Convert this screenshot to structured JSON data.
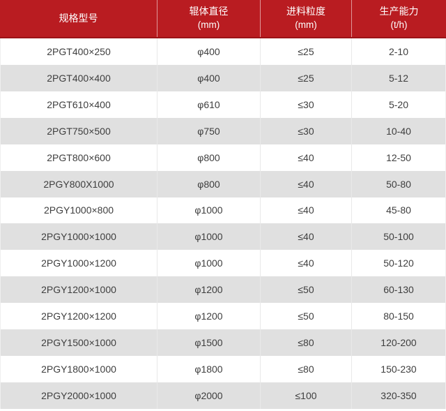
{
  "table": {
    "columns": [
      {
        "label": "规格型号",
        "unit": ""
      },
      {
        "label": "辊体直径",
        "unit": "(mm)"
      },
      {
        "label": "进料粒度",
        "unit": "(mm)"
      },
      {
        "label": "生产能力",
        "unit": "(t/h)"
      }
    ],
    "rows": [
      [
        "2PGT400×250",
        "φ400",
        "≤25",
        "2-10"
      ],
      [
        "2PGT400×400",
        "φ400",
        "≤25",
        "5-12"
      ],
      [
        "2PGT610×400",
        "φ610",
        "≤30",
        "5-20"
      ],
      [
        "2PGT750×500",
        "φ750",
        "≤30",
        "10-40"
      ],
      [
        "2PGT800×600",
        "φ800",
        "≤40",
        "12-50"
      ],
      [
        "2PGY800X1000",
        "φ800",
        "≤40",
        "50-80"
      ],
      [
        "2PGY1000×800",
        "φ1000",
        "≤40",
        "45-80"
      ],
      [
        "2PGY1000×1000",
        "φ1000",
        "≤40",
        "50-100"
      ],
      [
        "2PGY1000×1200",
        "φ1000",
        "≤40",
        "50-120"
      ],
      [
        "2PGY1200×1000",
        "φ1200",
        "≤50",
        "60-130"
      ],
      [
        "2PGY1200×1200",
        "φ1200",
        "≤50",
        "80-150"
      ],
      [
        "2PGY1500×1000",
        "φ1500",
        "≤80",
        "120-200"
      ],
      [
        "2PGY1800×1000",
        "φ1800",
        "≤80",
        "150-230"
      ],
      [
        "2PGY2000×1000",
        "φ2000",
        "≤100",
        "320-350"
      ]
    ],
    "colors": {
      "header_bg": "#b91c21",
      "header_border_bottom": "#9c1217",
      "header_text": "#ffffff",
      "row_alt_bg": "#e0e0e0",
      "row_bg": "#ffffff",
      "cell_text": "#3e3e3e",
      "divider": "#e9e9e9"
    }
  },
  "chart_data": {
    "type": "table",
    "title": "",
    "columns": [
      "规格型号",
      "辊体直径 (mm)",
      "进料粒度 (mm)",
      "生产能力 (t/h)"
    ],
    "rows": [
      [
        "2PGT400×250",
        "φ400",
        "≤25",
        "2-10"
      ],
      [
        "2PGT400×400",
        "φ400",
        "≤25",
        "5-12"
      ],
      [
        "2PGT610×400",
        "φ610",
        "≤30",
        "5-20"
      ],
      [
        "2PGT750×500",
        "φ750",
        "≤30",
        "10-40"
      ],
      [
        "2PGT800×600",
        "φ800",
        "≤40",
        "12-50"
      ],
      [
        "2PGY800X1000",
        "φ800",
        "≤40",
        "50-80"
      ],
      [
        "2PGY1000×800",
        "φ1000",
        "≤40",
        "45-80"
      ],
      [
        "2PGY1000×1000",
        "φ1000",
        "≤40",
        "50-100"
      ],
      [
        "2PGY1000×1200",
        "φ1000",
        "≤40",
        "50-120"
      ],
      [
        "2PGY1200×1000",
        "φ1200",
        "≤50",
        "60-130"
      ],
      [
        "2PGY1200×1200",
        "φ1200",
        "≤50",
        "80-150"
      ],
      [
        "2PGY1500×1000",
        "φ1500",
        "≤80",
        "120-200"
      ],
      [
        "2PGY1800×1000",
        "φ1800",
        "≤80",
        "150-230"
      ],
      [
        "2PGY2000×1000",
        "φ2000",
        "≤100",
        "320-350"
      ]
    ]
  }
}
